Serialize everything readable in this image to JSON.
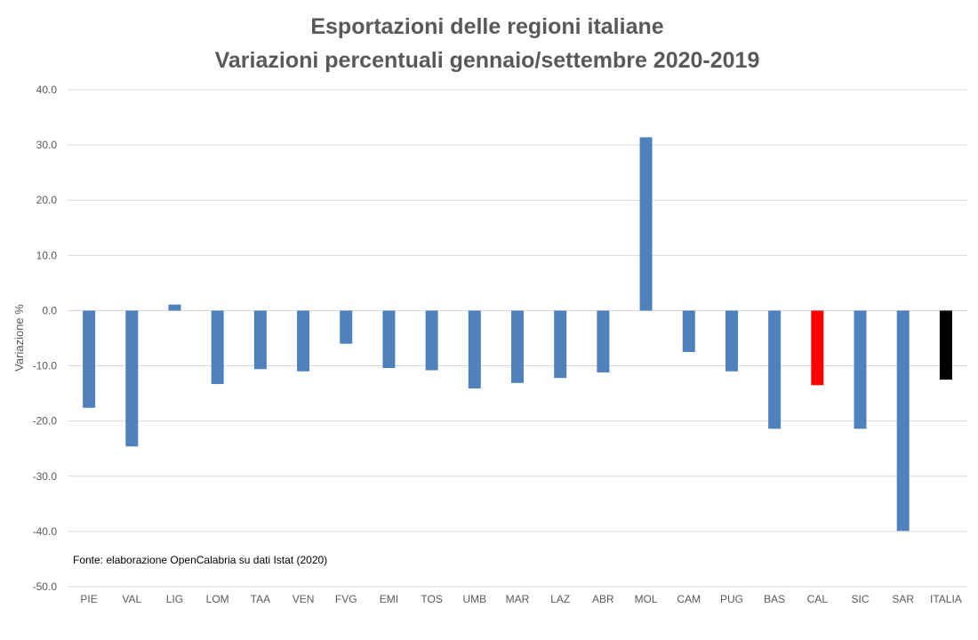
{
  "chart_data": {
    "type": "bar",
    "title": [
      "Esportazioni delle regioni italiane",
      "Variazioni percentuali gennaio/settembre 2020-2019"
    ],
    "xlabel": "",
    "ylabel": "Variazione %",
    "ylim": [
      -50,
      40
    ],
    "yticks": [
      40,
      30,
      20,
      10,
      0,
      -10,
      -20,
      -30,
      -40,
      -50
    ],
    "ytick_labels": [
      "40.0",
      "30.0",
      "20.0",
      "10.0",
      "0.0",
      "-10.0",
      "-20.0",
      "-30.0",
      "-40.0",
      "-50.0"
    ],
    "grid": true,
    "categories": [
      "PIE",
      "VAL",
      "LIG",
      "LOM",
      "TAA",
      "VEN",
      "FVG",
      "EMI",
      "TOS",
      "UMB",
      "MAR",
      "LAZ",
      "ABR",
      "MOL",
      "CAM",
      "PUG",
      "BAS",
      "CAL",
      "SIC",
      "SAR",
      "ITALIA"
    ],
    "values": [
      -17.6,
      -24.6,
      1.1,
      -13.3,
      -10.6,
      -11.0,
      -6.0,
      -10.4,
      -10.8,
      -14.1,
      -13.1,
      -12.2,
      -11.2,
      31.4,
      -7.5,
      -11.0,
      -21.4,
      -13.5,
      -21.4,
      -39.9,
      -12.5
    ],
    "colors": {
      "default": "#4f81bd",
      "CAL": "#ff0000",
      "ITALIA": "#000000"
    },
    "annotation": "Fonte: elaborazione OpenCalabria su dati Istat (2020)"
  }
}
